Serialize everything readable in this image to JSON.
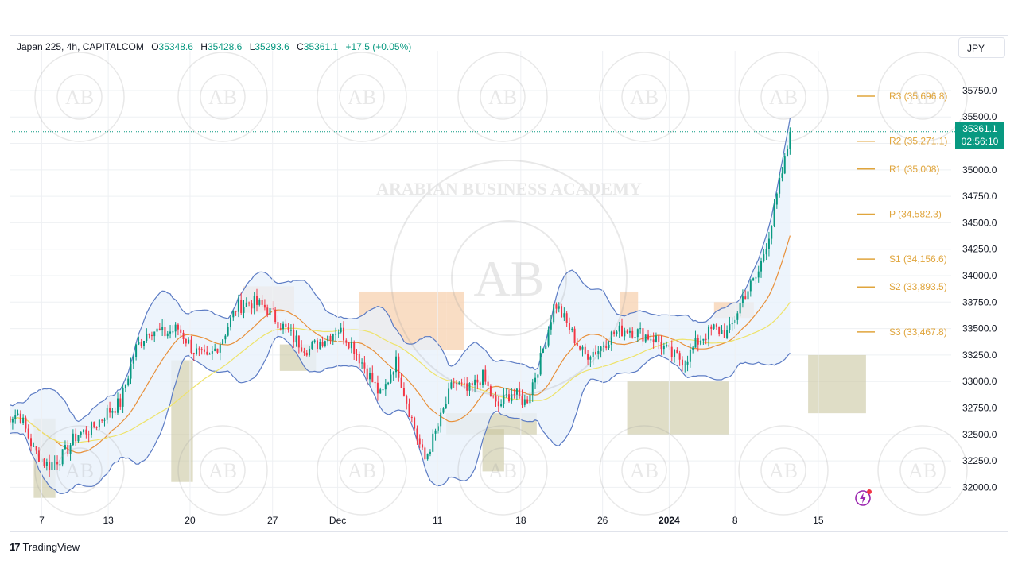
{
  "header": {
    "symbol": "Japan 225, 4h, CAPITALCOM",
    "open_label": "O",
    "open": "35348.6",
    "high_label": "H",
    "high": "35428.6",
    "low_label": "L",
    "low": "35293.6",
    "close_label": "C",
    "close": "35361.1",
    "change": "+17.5 (+0.05%)"
  },
  "currency": "JPY",
  "last_price": {
    "price": "35361.1",
    "countdown": "02:56:10"
  },
  "brand": {
    "name": "TradingView"
  },
  "watermark": {
    "text": "ARABIAN BUSINESS ACADEMY",
    "initials": "AB"
  },
  "colors": {
    "up": "#089981",
    "down": "#f23645",
    "band": "#5b7bc4",
    "band_fill": "#e9f1fb",
    "ma_fast": "#e8903a",
    "ma_slow": "#eee36a",
    "pivot": "#e0a53c",
    "zone_supply": "#f7d2b0",
    "zone_demand": "#c9c7a0",
    "grid": "#eef0f3"
  },
  "chart_data": {
    "type": "candlestick",
    "timeframe": "4h",
    "ylim": [
      31800,
      36050
    ],
    "y_ticks": [
      "32000.0",
      "32250.0",
      "32500.0",
      "32750.0",
      "33000.0",
      "33250.0",
      "33500.0",
      "33750.0",
      "34000.0",
      "34250.0",
      "34500.0",
      "34750.0",
      "35000.0",
      "35250.0",
      "35500.0",
      "35750.0"
    ],
    "x_ticks": [
      {
        "label": "7",
        "t": 0.051
      },
      {
        "label": "13",
        "t": 0.143
      },
      {
        "label": "20",
        "t": 0.256
      },
      {
        "label": "27",
        "t": 0.37
      },
      {
        "label": "Dec",
        "t": 0.46,
        "bold": false
      },
      {
        "label": "11",
        "t": 0.598
      },
      {
        "label": "18",
        "t": 0.713
      },
      {
        "label": "26",
        "t": 0.826
      },
      {
        "label": "2024",
        "t": 0.918,
        "bold": true
      },
      {
        "label": "8",
        "t": 1.009
      },
      {
        "label": "15",
        "t": 1.124
      }
    ],
    "pivots": [
      {
        "label": "R3 (35,696.8)",
        "value": 35696.8
      },
      {
        "label": "R2 (35,271.1)",
        "value": 35271.1
      },
      {
        "label": "R1 (35,008)",
        "value": 35008
      },
      {
        "label": "P (34,582.3)",
        "value": 34582.3
      },
      {
        "label": "S1 (34,156.6)",
        "value": 34156.6
      },
      {
        "label": "S2 (33,893.5)",
        "value": 33893.5
      },
      {
        "label": "S3 (33,467.8)",
        "value": 33467.8
      }
    ],
    "close_path": [
      [
        0.0,
        32650
      ],
      [
        0.02,
        32700
      ],
      [
        0.04,
        32350
      ],
      [
        0.06,
        32200
      ],
      [
        0.08,
        32300
      ],
      [
        0.1,
        32500
      ],
      [
        0.12,
        32550
      ],
      [
        0.14,
        32700
      ],
      [
        0.16,
        32800
      ],
      [
        0.18,
        33300
      ],
      [
        0.2,
        33500
      ],
      [
        0.22,
        33450
      ],
      [
        0.24,
        33500
      ],
      [
        0.26,
        33300
      ],
      [
        0.28,
        33200
      ],
      [
        0.3,
        33400
      ],
      [
        0.32,
        33700
      ],
      [
        0.34,
        33750
      ],
      [
        0.36,
        33700
      ],
      [
        0.38,
        33550
      ],
      [
        0.4,
        33400
      ],
      [
        0.42,
        33300
      ],
      [
        0.44,
        33400
      ],
      [
        0.46,
        33500
      ],
      [
        0.48,
        33350
      ],
      [
        0.5,
        33100
      ],
      [
        0.52,
        32850
      ],
      [
        0.54,
        33200
      ],
      [
        0.56,
        32700
      ],
      [
        0.58,
        32250
      ],
      [
        0.6,
        32600
      ],
      [
        0.62,
        33000
      ],
      [
        0.64,
        32900
      ],
      [
        0.66,
        33050
      ],
      [
        0.68,
        32750
      ],
      [
        0.7,
        32900
      ],
      [
        0.72,
        32800
      ],
      [
        0.74,
        33200
      ],
      [
        0.76,
        33750
      ],
      [
        0.78,
        33500
      ],
      [
        0.8,
        33250
      ],
      [
        0.82,
        33300
      ],
      [
        0.84,
        33450
      ],
      [
        0.86,
        33500
      ],
      [
        0.88,
        33450
      ],
      [
        0.9,
        33400
      ],
      [
        0.92,
        33250
      ],
      [
        0.94,
        33200
      ],
      [
        0.96,
        33400
      ],
      [
        0.98,
        33500
      ],
      [
        1.0,
        33450
      ],
      [
        1.02,
        33800
      ],
      [
        1.04,
        34000
      ],
      [
        1.06,
        34500
      ],
      [
        1.07,
        34850
      ],
      [
        1.08,
        35150
      ],
      [
        1.085,
        35361.1
      ]
    ],
    "zones": [
      {
        "kind": "supply",
        "t0": 0.33,
        "t1": 0.4,
        "y0": 33650,
        "y1": 33900
      },
      {
        "kind": "supply",
        "t0": 0.49,
        "t1": 0.61,
        "y0": 33300,
        "y1": 33850
      },
      {
        "kind": "supply",
        "t0": 0.61,
        "t1": 0.635,
        "y0": 33300,
        "y1": 33850
      },
      {
        "kind": "supply",
        "t0": 0.85,
        "t1": 0.875,
        "y0": 33450,
        "y1": 33850
      },
      {
        "kind": "supply",
        "t0": 0.98,
        "t1": 1.035,
        "y0": 33600,
        "y1": 33750
      },
      {
        "kind": "demand",
        "t0": 0.04,
        "t1": 0.07,
        "y0": 31900,
        "y1": 32650
      },
      {
        "kind": "demand",
        "t0": 0.23,
        "t1": 0.26,
        "y0": 32050,
        "y1": 33200
      },
      {
        "kind": "demand",
        "t0": 0.38,
        "t1": 0.43,
        "y0": 33100,
        "y1": 33350
      },
      {
        "kind": "demand",
        "t0": 0.61,
        "t1": 0.735,
        "y0": 32500,
        "y1": 32700
      },
      {
        "kind": "demand",
        "t0": 0.66,
        "t1": 0.69,
        "y0": 32150,
        "y1": 32550
      },
      {
        "kind": "demand",
        "t0": 0.86,
        "t1": 1.0,
        "y0": 32500,
        "y1": 33000
      },
      {
        "kind": "demand",
        "t0": 1.11,
        "t1": 1.19,
        "y0": 32700,
        "y1": 33250
      }
    ]
  }
}
